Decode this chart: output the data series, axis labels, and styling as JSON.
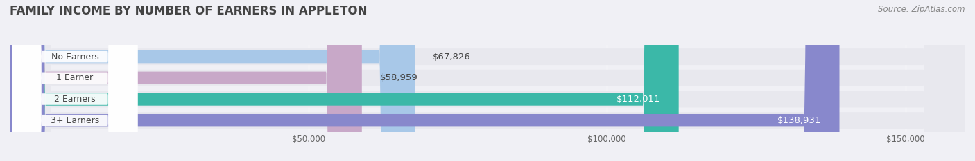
{
  "title": "FAMILY INCOME BY NUMBER OF EARNERS IN APPLETON",
  "source": "Source: ZipAtlas.com",
  "categories": [
    "No Earners",
    "1 Earner",
    "2 Earners",
    "3+ Earners"
  ],
  "values": [
    67826,
    58959,
    112011,
    138931
  ],
  "bar_colors": [
    "#a8c8e8",
    "#c8a8c8",
    "#3bb8a8",
    "#8888cc"
  ],
  "label_colors": [
    "#555555",
    "#555555",
    "#ffffff",
    "#ffffff"
  ],
  "label_inside": [
    false,
    false,
    true,
    true
  ],
  "background_color": "#f0f0f5",
  "bar_background_color": "#e8e8ee",
  "xlim": [
    0,
    160000
  ],
  "xticks": [
    50000,
    100000,
    150000
  ],
  "xtick_labels": [
    "$50,000",
    "$100,000",
    "$150,000"
  ],
  "title_fontsize": 12,
  "label_fontsize": 9.5,
  "tick_fontsize": 8.5,
  "source_fontsize": 8.5
}
